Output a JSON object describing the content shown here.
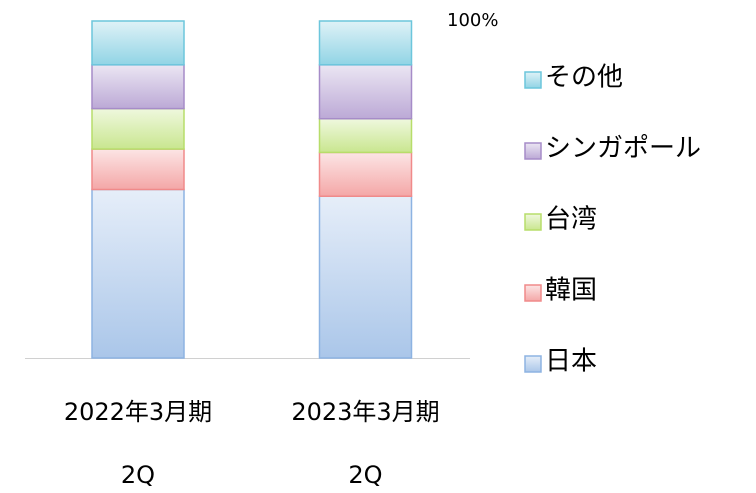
{
  "chart_data": {
    "type": "stacked_bar",
    "categories": [
      [
        "2022年3月期",
        "2Q"
      ],
      [
        "2023年3月期",
        "2Q"
      ]
    ],
    "series": [
      {
        "name": "日本",
        "color": "#8db3e2",
        "values": [
          50,
          48
        ]
      },
      {
        "name": "韓国",
        "color": "#f08a8a",
        "values": [
          12,
          13
        ]
      },
      {
        "name": "台湾",
        "color": "#b7dd6a",
        "values": [
          12,
          10
        ]
      },
      {
        "name": "シンガポール",
        "color": "#a68cc8",
        "values": [
          13,
          16
        ]
      },
      {
        "name": "その他",
        "color": "#6cc6dc",
        "values": [
          13,
          13
        ]
      }
    ],
    "ylim": [
      0,
      100
    ],
    "yticks": [
      {
        "value": 100,
        "label": "100%"
      }
    ],
    "legend": "right"
  }
}
